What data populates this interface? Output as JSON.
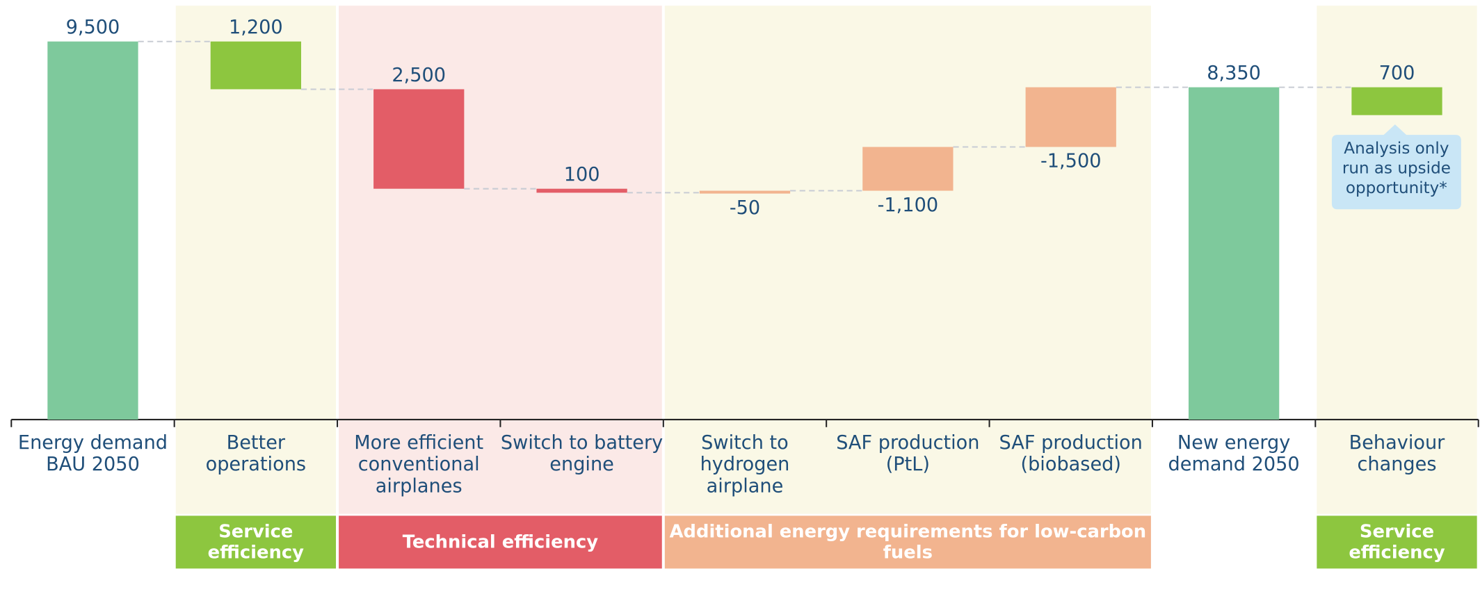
{
  "chart_data": {
    "type": "waterfall",
    "categories": [
      "Energy demand BAU 2050",
      "Better operations",
      "More efficient conventional airplanes",
      "Switch to battery engine",
      "Switch to hydrogen airplane",
      "SAF production (PtL)",
      "SAF production (biobased)",
      "New energy demand 2050",
      "Behaviour changes"
    ],
    "values": [
      9500,
      1200,
      2500,
      100,
      -50,
      -1100,
      -1500,
      8350,
      700
    ],
    "value_labels": [
      "9,500",
      "1,200",
      "2,500",
      "100",
      "-50",
      "-1,100",
      "-1,500",
      "8,350",
      "700"
    ],
    "measure": [
      "total",
      "relative",
      "relative",
      "relative",
      "relative",
      "relative",
      "relative",
      "total",
      "relative"
    ],
    "colors": [
      "#7ec99c",
      "#8dc63f",
      "#e35d67",
      "#e35d67",
      "#f2b48f",
      "#f2b48f",
      "#f2b48f",
      "#7ec99c",
      "#8dc63f"
    ],
    "ylim": [
      0,
      9500
    ],
    "groups": [
      {
        "label": "Service efficiency",
        "members": [
          1
        ],
        "color": "#8dc63f",
        "panel_color": "#faf8e6"
      },
      {
        "label": "Technical efficiency",
        "members": [
          2,
          3
        ],
        "color": "#e35d67",
        "panel_color": "#fbe9e7"
      },
      {
        "label": "Additional energy requirements for low-carbon fuels",
        "members": [
          4,
          5,
          6
        ],
        "color": "#f2b48f",
        "panel_color": "#faf8e6"
      },
      {
        "label": "Service efficiency",
        "members": [
          8
        ],
        "color": "#8dc63f",
        "panel_color": "#faf8e6"
      }
    ],
    "annotation": "Analysis only run as upside opportunity*"
  }
}
